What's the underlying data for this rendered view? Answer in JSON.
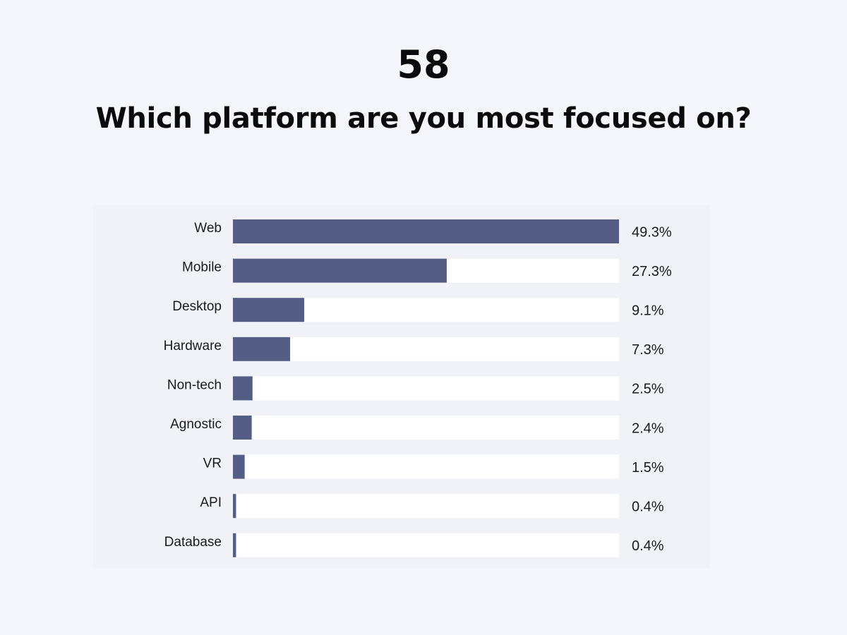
{
  "header": {
    "number": "58",
    "question": "Which platform are you most focused on?"
  },
  "colors": {
    "bar": "#545e85",
    "track": "#ffffff",
    "background": "#f5f6fb",
    "panel": "#f1f2f8"
  },
  "chart_data": {
    "type": "bar",
    "orientation": "horizontal",
    "categories": [
      "Web",
      "Mobile",
      "Desktop",
      "Hardware",
      "Non-tech",
      "Agnostic",
      "VR",
      "API",
      "Database"
    ],
    "values": [
      49.3,
      27.3,
      9.1,
      7.3,
      2.5,
      2.4,
      1.5,
      0.4,
      0.4
    ],
    "value_labels": [
      "49.3%",
      "27.3%",
      "9.1%",
      "7.3%",
      "2.5%",
      "2.4%",
      "1.5%",
      "0.4%",
      "0.4%"
    ],
    "xlim": [
      0,
      49.3
    ],
    "grid": false,
    "legend": "none"
  }
}
